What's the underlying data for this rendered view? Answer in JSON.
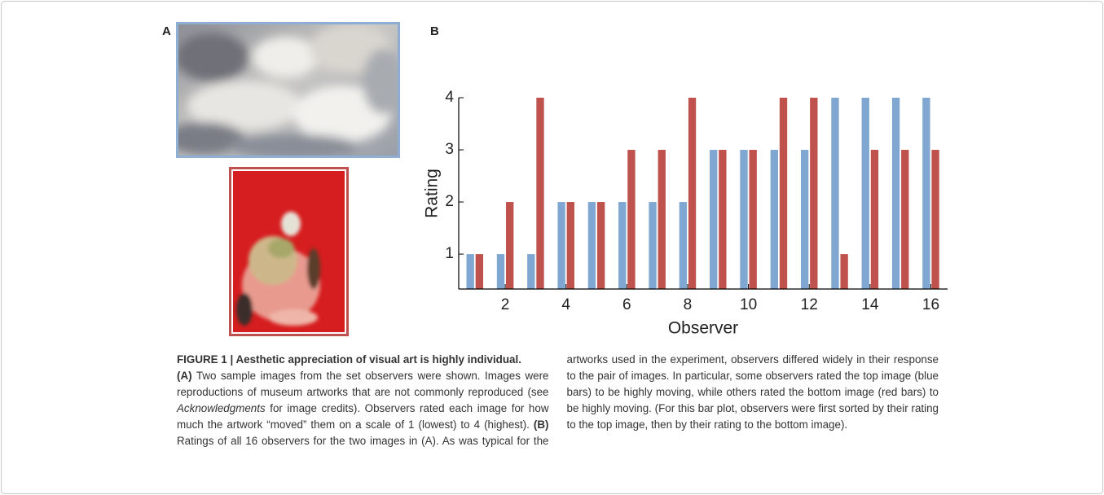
{
  "panel_labels": [
    "A",
    "B"
  ],
  "chart_data": {
    "type": "bar",
    "x": [
      1,
      2,
      3,
      4,
      5,
      6,
      7,
      8,
      9,
      10,
      11,
      12,
      13,
      14,
      15,
      16
    ],
    "xlim": [
      0.47,
      16.55
    ],
    "xticks": [
      2,
      4,
      6,
      8,
      10,
      12,
      14,
      16
    ],
    "ylim": [
      0.33,
      4
    ],
    "yticks": [
      1,
      2,
      3,
      4
    ],
    "xlabel": "Observer",
    "ylabel": "Rating",
    "series": [
      {
        "color": "#7fa7d1",
        "values": [
          1,
          1,
          1,
          2,
          2,
          2,
          2,
          2,
          3,
          3,
          3,
          3,
          4,
          4,
          4,
          4
        ]
      },
      {
        "color": "#bf524c",
        "values": [
          1,
          2,
          4,
          2,
          2,
          3,
          3,
          4,
          3,
          3,
          4,
          4,
          1,
          3,
          3,
          3
        ]
      }
    ]
  },
  "caption": {
    "title": "FIGURE 1 | Aesthetic appreciation of visual art is highly individual.",
    "runs": [
      {
        "text": "(A)",
        "style": "bold"
      },
      {
        "text": " Two sample images from the set observers were shown. Images were reproductions of museum artworks that are not commonly reproduced (see ",
        "style": "normal"
      },
      {
        "text": "Acknowledgments",
        "style": "italic"
      },
      {
        "text": " for image credits). Observers rated each image for how much the artwork “moved” them on a scale of 1 (lowest) to 4 (highest). ",
        "style": "normal"
      },
      {
        "text": "(B)",
        "style": "bold"
      },
      {
        "text": " Ratings of all 16 observers for the two images in (A). As was typical for the artworks used in the experiment, observers differed widely in their response to the pair of images. In particular, some observers rated the top image (blue bars) to be highly moving, while others rated the bottom image (red bars) to be highly moving. (For this bar plot, observers were first sorted by their rating to the top image, then by their rating to the bottom image).",
        "style": "normal"
      }
    ]
  }
}
